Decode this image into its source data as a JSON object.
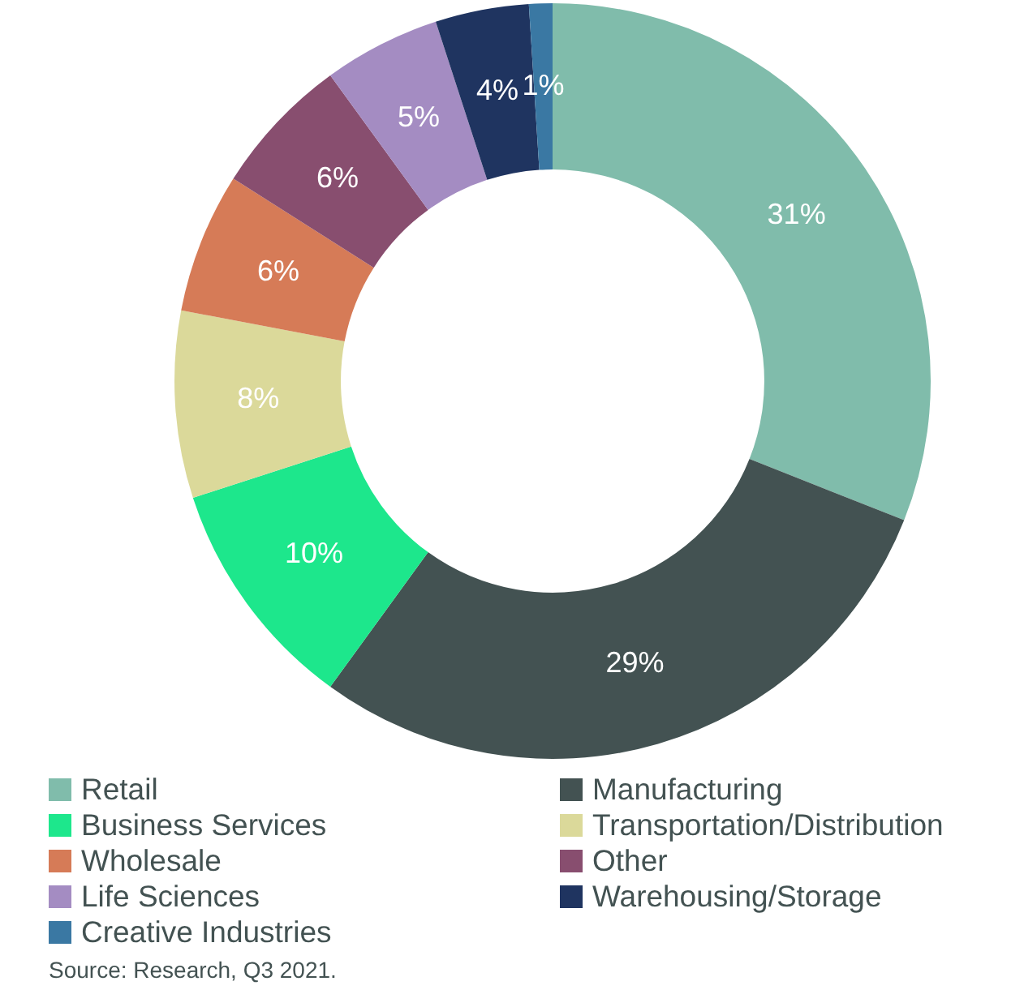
{
  "chart_data": {
    "type": "donut",
    "categories": [
      "Retail",
      "Manufacturing",
      "Business Services",
      "Transportation/Distribution",
      "Wholesale",
      "Other",
      "Life Sciences",
      "Warehousing/Storage",
      "Creative Industries"
    ],
    "values": [
      31,
      29,
      10,
      8,
      6,
      6,
      5,
      4,
      1
    ],
    "value_labels": [
      "31%",
      "29%",
      "10%",
      "8%",
      "6%",
      "6%",
      "5%",
      "4%",
      "1%"
    ],
    "colors": [
      "#80bcab",
      "#435252",
      "#1de78c",
      "#dbd99a",
      "#d67b57",
      "#884e6f",
      "#a48cc2",
      "#1f3460",
      "#3a78a3"
    ],
    "legend": "bottom",
    "annotations": [
      "Source: Research, Q3 2021."
    ]
  }
}
